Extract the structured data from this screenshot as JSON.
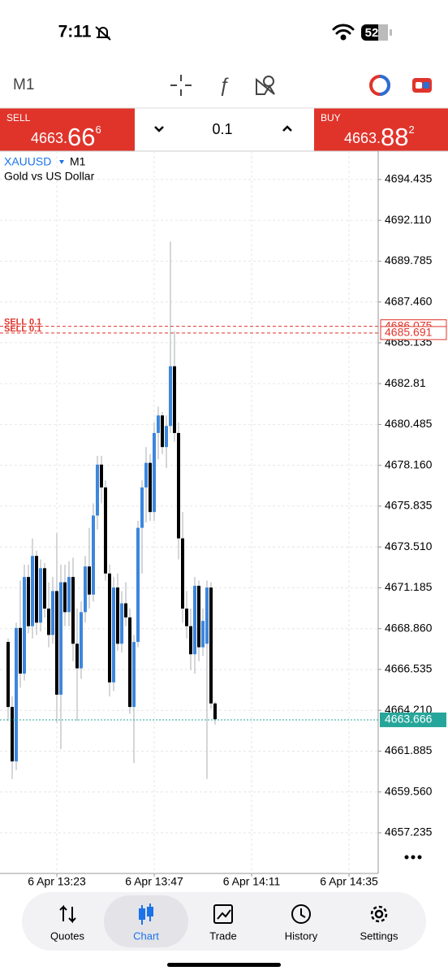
{
  "status_bar": {
    "time": "7:11",
    "battery": "52"
  },
  "toolbar": {
    "timeframe": "M1"
  },
  "trade_panel": {
    "sell": {
      "label": "SELL",
      "price_main": "4663.",
      "price_big": "66",
      "price_sup": "6"
    },
    "volume": "0.1",
    "buy": {
      "label": "BUY",
      "price_main": "4663.",
      "price_big": "88",
      "price_sup": "2"
    }
  },
  "chart_data": {
    "type": "candlestick",
    "symbol": "XAUUSD",
    "timeframe": "M1",
    "description": "Gold vs US Dollar",
    "bull_color": "#3d86dc",
    "bear_color": "#000000",
    "wick_color": "#a9adb3",
    "grid": true,
    "x": [
      "6 Apr 13:11",
      "6 Apr 13:12",
      "6 Apr 13:13",
      "6 Apr 13:14",
      "6 Apr 13:15",
      "6 Apr 13:16",
      "6 Apr 13:17",
      "6 Apr 13:18",
      "6 Apr 13:19",
      "6 Apr 13:20",
      "6 Apr 13:21",
      "6 Apr 13:22",
      "6 Apr 13:23",
      "6 Apr 13:24",
      "6 Apr 13:25",
      "6 Apr 13:26",
      "6 Apr 13:27",
      "6 Apr 13:28",
      "6 Apr 13:29",
      "6 Apr 13:30",
      "6 Apr 13:31",
      "6 Apr 13:32",
      "6 Apr 13:33",
      "6 Apr 13:34",
      "6 Apr 13:35",
      "6 Apr 13:36",
      "6 Apr 13:37",
      "6 Apr 13:38",
      "6 Apr 13:39",
      "6 Apr 13:40",
      "6 Apr 13:41",
      "6 Apr 13:42",
      "6 Apr 13:43",
      "6 Apr 13:44",
      "6 Apr 13:45",
      "6 Apr 13:46",
      "6 Apr 13:47",
      "6 Apr 13:48",
      "6 Apr 13:49",
      "6 Apr 13:50",
      "6 Apr 13:51",
      "6 Apr 13:52",
      "6 Apr 13:53",
      "6 Apr 13:54",
      "6 Apr 13:55",
      "6 Apr 13:56",
      "6 Apr 13:57",
      "6 Apr 13:58",
      "6 Apr 13:59",
      "6 Apr 14:00",
      "6 Apr 14:01",
      "6 Apr 14:02"
    ],
    "open": [
      4668.1,
      4664.4,
      4661.3,
      4668.9,
      4666.3,
      4671.8,
      4669.0,
      4673.0,
      4669.2,
      4672.3,
      4670.0,
      4668.5,
      4671.0,
      4665.1,
      4671.5,
      4669.8,
      4671.8,
      4668.0,
      4666.6,
      4669.8,
      4672.4,
      4670.8,
      4675.3,
      4678.2,
      4676.9,
      4672.0,
      4665.8,
      4671.2,
      4668.0,
      4670.3,
      4669.5,
      4664.4,
      4668.1,
      4674.6,
      4676.9,
      4678.3,
      4675.5,
      4680.0,
      4681.0,
      4679.2,
      4680.4,
      4683.8,
      4680.0,
      4674.0,
      4670.0,
      4669.0,
      4667.4,
      4671.3,
      4667.8,
      4668.0,
      4671.2,
      4664.6
    ],
    "high": [
      4668.3,
      4665.0,
      4669.2,
      4671.6,
      4672.5,
      4672.5,
      4674.0,
      4673.3,
      4672.8,
      4672.6,
      4671.5,
      4671.8,
      4674.3,
      4672.5,
      4672.5,
      4672.7,
      4672.9,
      4670.0,
      4670.4,
      4673.0,
      4674.6,
      4676.0,
      4678.7,
      4678.7,
      4677.3,
      4672.5,
      4671.8,
      4672.0,
      4671.0,
      4671.5,
      4670.0,
      4668.5,
      4675.0,
      4677.3,
      4679.2,
      4678.8,
      4680.6,
      4681.5,
      4681.2,
      4681.0,
      4690.9,
      4685.8,
      4680.6,
      4675.5,
      4671.0,
      4670.0,
      4671.8,
      4671.6,
      4670.0,
      4671.6,
      4671.5,
      4664.7
    ],
    "low": [
      4663.6,
      4660.3,
      4660.8,
      4665.5,
      4665.9,
      4668.6,
      4668.3,
      4668.5,
      4668.7,
      4669.5,
      4667.8,
      4668.0,
      4663.5,
      4662.0,
      4669.0,
      4669.0,
      4667.0,
      4663.6,
      4666.0,
      4669.2,
      4670.0,
      4670.4,
      4674.5,
      4676.0,
      4671.6,
      4665.0,
      4665.3,
      4667.6,
      4667.5,
      4669.0,
      4664.0,
      4661.2,
      4667.8,
      4672.0,
      4674.9,
      4675.0,
      4675.0,
      4678.5,
      4678.8,
      4678.0,
      4680.0,
      4679.5,
      4672.8,
      4669.2,
      4668.3,
      4666.5,
      4666.3,
      4667.0,
      4667.3,
      4660.3,
      4664.3,
      4663.4
    ],
    "close": [
      4664.4,
      4661.3,
      4668.9,
      4666.3,
      4671.8,
      4669.0,
      4673.0,
      4669.2,
      4672.3,
      4670.0,
      4668.5,
      4671.0,
      4665.1,
      4671.5,
      4669.8,
      4671.8,
      4668.0,
      4666.6,
      4669.8,
      4672.4,
      4670.8,
      4675.3,
      4678.2,
      4676.9,
      4672.0,
      4665.8,
      4671.2,
      4668.0,
      4670.3,
      4669.5,
      4664.4,
      4668.1,
      4674.6,
      4676.9,
      4678.3,
      4675.5,
      4680.0,
      4681.0,
      4679.2,
      4680.4,
      4683.8,
      4680.0,
      4674.0,
      4670.0,
      4669.0,
      4667.4,
      4671.3,
      4667.8,
      4669.3,
      4671.2,
      4664.6,
      4663.7
    ],
    "ylim": [
      4654.92,
      4696.05
    ],
    "yticks": [
      4694.435,
      {
        "value": 4692.11,
        "label": "4692.110"
      },
      4689.785,
      {
        "value": 4687.46,
        "label": "4687.460"
      },
      4685.135,
      4682.81,
      4680.485,
      {
        "value": 4678.16,
        "label": "4678.160"
      },
      4675.835,
      {
        "value": 4673.51,
        "label": "4673.510"
      },
      4671.185,
      {
        "value": 4668.86,
        "label": "4668.860"
      },
      4666.535,
      {
        "value": 4664.21,
        "label": "4664.210"
      },
      4661.885,
      {
        "value": 4659.56,
        "label": "4659.560"
      },
      4657.235
    ],
    "xticks": [
      "6 Apr 13:23",
      "6 Apr 13:47",
      "6 Apr 14:11",
      "6 Apr 14:35"
    ],
    "current_price": {
      "value": 4663.666,
      "color": "#26a69a"
    },
    "orders": [
      {
        "label": "SELL 0.1",
        "price": 4686.075,
        "color": "#e0342b"
      },
      {
        "label": "SELL 0.1",
        "price": 4685.691,
        "color": "#e0342b"
      }
    ]
  },
  "tab_bar": {
    "tabs": [
      "Quotes",
      "Chart",
      "Trade",
      "History",
      "Settings"
    ],
    "active": "Chart"
  }
}
